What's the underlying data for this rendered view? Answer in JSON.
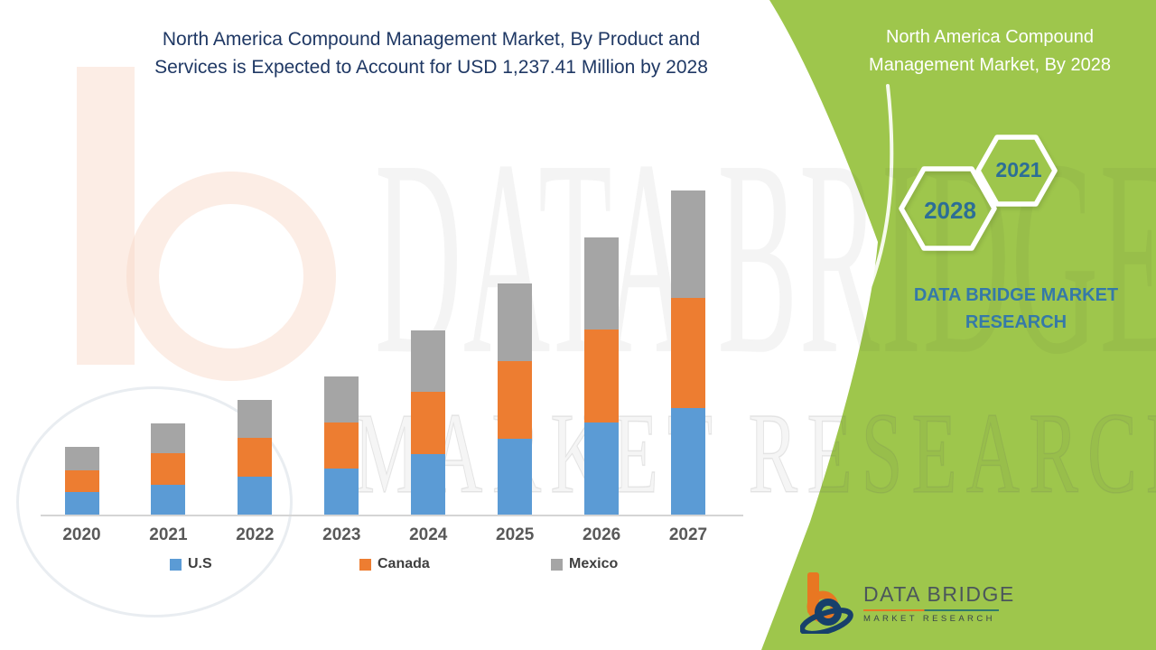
{
  "header": {
    "title_line1": "North America Compound Management Market, By Product and",
    "title_line2": "Services is Expected to Account for USD 1,237.41 Million by 2028"
  },
  "chart_data": {
    "type": "bar",
    "stacked": true,
    "title": "North America Compound Management Market, By Product and Services is Expected to Account for USD 1,237.41 Million by 2028",
    "categories": [
      "2020",
      "2021",
      "2022",
      "2023",
      "2024",
      "2025",
      "2026",
      "2027"
    ],
    "series": [
      {
        "name": "U.S",
        "color": "#5B9BD5",
        "values": [
          25,
          33,
          42,
          51,
          67,
          84,
          102,
          118
        ]
      },
      {
        "name": "Canada",
        "color": "#ED7D31",
        "values": [
          24,
          35,
          43,
          51,
          69,
          86,
          103,
          122
        ]
      },
      {
        "name": "Mexico",
        "color": "#A5A5A5",
        "values": [
          26,
          33,
          42,
          51,
          68,
          86,
          102,
          119
        ]
      }
    ],
    "xlabel": "",
    "ylabel": "",
    "units": "relative height (no y-axis values shown)",
    "ylim": [
      0,
      385
    ],
    "grid": false,
    "y_axis_visible": false,
    "legend_position": "bottom"
  },
  "side_panel": {
    "title": "North America Compound Management Market, By 2028",
    "hexagon_large_label": "2028",
    "hexagon_small_label": "2021",
    "brand_text": "DATA BRIDGE MARKET RESEARCH"
  },
  "footer_logo": {
    "title": "DATA BRIDGE",
    "subtitle": "MARKET RESEARCH"
  },
  "watermark": {
    "line1": "DATA BRIDGE",
    "line2": "MARKET RESEARCH"
  },
  "colors": {
    "panel_green": "#9EC64C",
    "title_navy": "#1F3864",
    "hexagon_year_text": "#2C6E96",
    "brand_blue": "#3579A8",
    "axis_line": "#D5D5D5",
    "x_label_gray": "#595959",
    "logo_orange": "#E87722",
    "logo_navy": "#17406B"
  }
}
